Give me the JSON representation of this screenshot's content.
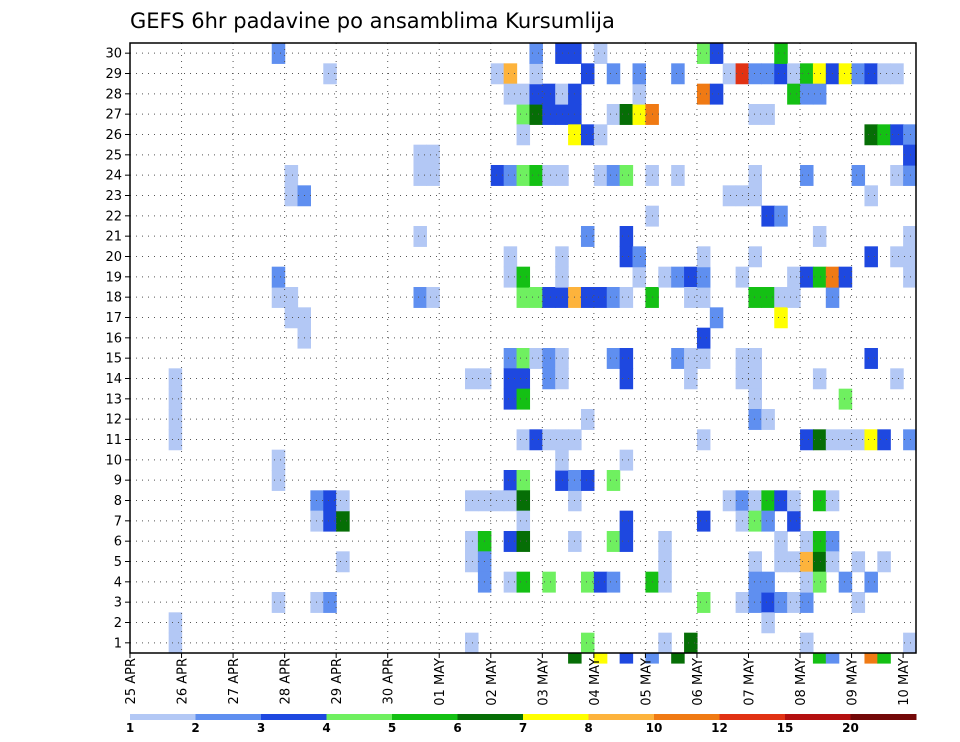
{
  "chart_data": {
    "type": "heatmap",
    "title": "GEFS 6hr padavine po ansamblima Kursumlija",
    "x_tick_labels": [
      "25 APR",
      "26 APR",
      "27 APR",
      "28 APR",
      "29 APR",
      "30 APR",
      "01 MAY",
      "02 MAY",
      "03 MAY",
      "04 MAY",
      "05 MAY",
      "06 MAY",
      "07 MAY",
      "08 MAY",
      "09 MAY",
      "10 MAY"
    ],
    "y_tick_labels": [
      "1",
      "2",
      "3",
      "4",
      "5",
      "6",
      "7",
      "8",
      "9",
      "10",
      "11",
      "12",
      "13",
      "14",
      "15",
      "16",
      "17",
      "18",
      "19",
      "20",
      "21",
      "22",
      "23",
      "24",
      "25",
      "26",
      "27",
      "28",
      "29",
      "30"
    ],
    "x_range": [
      0,
      61
    ],
    "y_range": [
      0.5,
      30.5
    ],
    "steps_per_day": 4,
    "grid": true,
    "colorbar": {
      "placement": "bottom",
      "labels": [
        "1",
        "2",
        "3",
        "4",
        "5",
        "6",
        "7",
        "8",
        "10",
        "12",
        "15",
        "20"
      ],
      "colors": [
        "#b3c8f5",
        "#5f8ff0",
        "#1e48e0",
        "#6ff060",
        "#14c014",
        "#066e06",
        "#ffff00",
        "#fdb33c",
        "#f07a14",
        "#e13214",
        "#b40f0f",
        "#730808"
      ]
    },
    "cells": [
      [
        3,
        1,
        1
      ],
      [
        3,
        2,
        1
      ],
      [
        3,
        11,
        1
      ],
      [
        3,
        12,
        1
      ],
      [
        3,
        13,
        1
      ],
      [
        3,
        14,
        1
      ],
      [
        11,
        3,
        1
      ],
      [
        11,
        9,
        1
      ],
      [
        11,
        10,
        1
      ],
      [
        11,
        18,
        1
      ],
      [
        11,
        19,
        2
      ],
      [
        11,
        30,
        2
      ],
      [
        12,
        17,
        1
      ],
      [
        12,
        18,
        1
      ],
      [
        12,
        23,
        1
      ],
      [
        12,
        24,
        1
      ],
      [
        13,
        16,
        1
      ],
      [
        13,
        17,
        1
      ],
      [
        13,
        23,
        2
      ],
      [
        14,
        3,
        1
      ],
      [
        14,
        8,
        2
      ],
      [
        14,
        7,
        1
      ],
      [
        15,
        3,
        2
      ],
      [
        15,
        7,
        3
      ],
      [
        15,
        8,
        3
      ],
      [
        15,
        29,
        1
      ],
      [
        16,
        7,
        6
      ],
      [
        16,
        8,
        1
      ],
      [
        16,
        5,
        1
      ],
      [
        22,
        24,
        1
      ],
      [
        22,
        25,
        1
      ],
      [
        22,
        18,
        2
      ],
      [
        22,
        21,
        1
      ],
      [
        23,
        24,
        1
      ],
      [
        23,
        25,
        1
      ],
      [
        23,
        18,
        1
      ],
      [
        26,
        1,
        1
      ],
      [
        26,
        5,
        1
      ],
      [
        26,
        6,
        1
      ],
      [
        26,
        8,
        1
      ],
      [
        26,
        14,
        1
      ],
      [
        27,
        6,
        5
      ],
      [
        27,
        5,
        2
      ],
      [
        27,
        4,
        2
      ],
      [
        27,
        8,
        1
      ],
      [
        27,
        14,
        1
      ],
      [
        28,
        8,
        1
      ],
      [
        28,
        24,
        3
      ],
      [
        28,
        29,
        1
      ],
      [
        29,
        29,
        8
      ],
      [
        29,
        24,
        2
      ],
      [
        29,
        20,
        1
      ],
      [
        29,
        19,
        1
      ],
      [
        29,
        15,
        2
      ],
      [
        29,
        14,
        3
      ],
      [
        29,
        13,
        3
      ],
      [
        29,
        9,
        3
      ],
      [
        29,
        6,
        3
      ],
      [
        29,
        4,
        1
      ],
      [
        29,
        8,
        1
      ],
      [
        29,
        28,
        1
      ],
      [
        30,
        27,
        4
      ],
      [
        30,
        18,
        4
      ],
      [
        30,
        24,
        4
      ],
      [
        30,
        15,
        4
      ],
      [
        30,
        14,
        3
      ],
      [
        30,
        13,
        5
      ],
      [
        30,
        11,
        1
      ],
      [
        30,
        9,
        4
      ],
      [
        30,
        8,
        6
      ],
      [
        30,
        7,
        1
      ],
      [
        30,
        6,
        6
      ],
      [
        30,
        4,
        5
      ],
      [
        30,
        19,
        5
      ],
      [
        30,
        26,
        1
      ],
      [
        30,
        28,
        1
      ],
      [
        31,
        27,
        6
      ],
      [
        31,
        28,
        3
      ],
      [
        31,
        29,
        1
      ],
      [
        31,
        30,
        2
      ],
      [
        31,
        18,
        4
      ],
      [
        31,
        24,
        5
      ],
      [
        31,
        11,
        3
      ],
      [
        31,
        15,
        1
      ],
      [
        32,
        27,
        3
      ],
      [
        32,
        28,
        3
      ],
      [
        32,
        24,
        1
      ],
      [
        32,
        18,
        3
      ],
      [
        32,
        11,
        1
      ],
      [
        32,
        15,
        2
      ],
      [
        32,
        14,
        2
      ],
      [
        32,
        4,
        4
      ],
      [
        33,
        27,
        3
      ],
      [
        33,
        28,
        1
      ],
      [
        33,
        30,
        3
      ],
      [
        33,
        24,
        1
      ],
      [
        33,
        18,
        3
      ],
      [
        33,
        11,
        1
      ],
      [
        33,
        15,
        1
      ],
      [
        33,
        19,
        1
      ],
      [
        33,
        20,
        1
      ],
      [
        33,
        9,
        3
      ],
      [
        33,
        10,
        1
      ],
      [
        33,
        14,
        1
      ],
      [
        34,
        27,
        3
      ],
      [
        34,
        28,
        3
      ],
      [
        34,
        30,
        3
      ],
      [
        34,
        26,
        7
      ],
      [
        34,
        18,
        8
      ],
      [
        34,
        6,
        1
      ],
      [
        34,
        8,
        1
      ],
      [
        34,
        9,
        2
      ],
      [
        34,
        11,
        1
      ],
      [
        34,
        0,
        6
      ],
      [
        35,
        29,
        3
      ],
      [
        35,
        26,
        3
      ],
      [
        35,
        21,
        2
      ],
      [
        35,
        18,
        3
      ],
      [
        35,
        9,
        3
      ],
      [
        35,
        4,
        4
      ],
      [
        35,
        12,
        1
      ],
      [
        35,
        1,
        4
      ],
      [
        36,
        26,
        1
      ],
      [
        36,
        30,
        1
      ],
      [
        36,
        24,
        1
      ],
      [
        36,
        18,
        3
      ],
      [
        36,
        4,
        3
      ],
      [
        36,
        0,
        7
      ],
      [
        37,
        29,
        2
      ],
      [
        37,
        27,
        1
      ],
      [
        37,
        24,
        2
      ],
      [
        37,
        18,
        2
      ],
      [
        37,
        15,
        2
      ],
      [
        37,
        6,
        4
      ],
      [
        37,
        9,
        4
      ],
      [
        37,
        4,
        2
      ],
      [
        38,
        27,
        6
      ],
      [
        38,
        24,
        4
      ],
      [
        38,
        18,
        1
      ],
      [
        38,
        15,
        3
      ],
      [
        38,
        14,
        3
      ],
      [
        38,
        7,
        3
      ],
      [
        38,
        6,
        3
      ],
      [
        38,
        10,
        1
      ],
      [
        38,
        20,
        3
      ],
      [
        38,
        21,
        3
      ],
      [
        38,
        0,
        3
      ],
      [
        39,
        27,
        7
      ],
      [
        39,
        28,
        1
      ],
      [
        39,
        29,
        2
      ],
      [
        39,
        19,
        1
      ],
      [
        39,
        20,
        2
      ],
      [
        40,
        27,
        9
      ],
      [
        40,
        24,
        1
      ],
      [
        40,
        18,
        5
      ],
      [
        40,
        22,
        1
      ],
      [
        40,
        4,
        5
      ],
      [
        40,
        0,
        2
      ],
      [
        41,
        1,
        1
      ],
      [
        41,
        4,
        1
      ],
      [
        41,
        5,
        1
      ],
      [
        41,
        6,
        1
      ],
      [
        41,
        19,
        1
      ],
      [
        42,
        24,
        1
      ],
      [
        42,
        29,
        2
      ],
      [
        42,
        15,
        2
      ],
      [
        42,
        19,
        2
      ],
      [
        42,
        0,
        6
      ],
      [
        43,
        19,
        3
      ],
      [
        43,
        18,
        1
      ],
      [
        43,
        1,
        6
      ],
      [
        43,
        15,
        1
      ],
      [
        43,
        14,
        1
      ],
      [
        44,
        30,
        4
      ],
      [
        44,
        18,
        1
      ],
      [
        44,
        19,
        2
      ],
      [
        44,
        20,
        1
      ],
      [
        44,
        15,
        1
      ],
      [
        44,
        28,
        9
      ],
      [
        44,
        16,
        3
      ],
      [
        44,
        7,
        3
      ],
      [
        44,
        11,
        1
      ],
      [
        44,
        3,
        4
      ],
      [
        45,
        30,
        3
      ],
      [
        45,
        28,
        3
      ],
      [
        45,
        17,
        2
      ],
      [
        46,
        29,
        1
      ],
      [
        46,
        23,
        1
      ],
      [
        46,
        8,
        1
      ],
      [
        47,
        23,
        1
      ],
      [
        47,
        19,
        1
      ],
      [
        47,
        15,
        1
      ],
      [
        47,
        14,
        1
      ],
      [
        47,
        8,
        2
      ],
      [
        47,
        7,
        1
      ],
      [
        47,
        3,
        1
      ],
      [
        47,
        29,
        10
      ],
      [
        48,
        24,
        1
      ],
      [
        48,
        23,
        1
      ],
      [
        48,
        27,
        1
      ],
      [
        48,
        20,
        1
      ],
      [
        48,
        18,
        5
      ],
      [
        48,
        15,
        1
      ],
      [
        48,
        14,
        1
      ],
      [
        48,
        13,
        1
      ],
      [
        48,
        12,
        2
      ],
      [
        48,
        8,
        1
      ],
      [
        48,
        7,
        4
      ],
      [
        48,
        5,
        1
      ],
      [
        48,
        4,
        2
      ],
      [
        48,
        3,
        2
      ],
      [
        48,
        29,
        2
      ],
      [
        49,
        29,
        2
      ],
      [
        49,
        27,
        1
      ],
      [
        49,
        22,
        3
      ],
      [
        49,
        18,
        5
      ],
      [
        49,
        12,
        1
      ],
      [
        49,
        8,
        5
      ],
      [
        49,
        7,
        2
      ],
      [
        49,
        3,
        3
      ],
      [
        49,
        2,
        1
      ],
      [
        49,
        4,
        2
      ],
      [
        50,
        29,
        3
      ],
      [
        50,
        30,
        5
      ],
      [
        50,
        22,
        2
      ],
      [
        50,
        18,
        1
      ],
      [
        50,
        6,
        1
      ],
      [
        50,
        8,
        3
      ],
      [
        50,
        3,
        2
      ],
      [
        50,
        5,
        1
      ],
      [
        50,
        17,
        7
      ],
      [
        51,
        29,
        1
      ],
      [
        51,
        28,
        5
      ],
      [
        51,
        18,
        1
      ],
      [
        51,
        19,
        1
      ],
      [
        51,
        7,
        3
      ],
      [
        51,
        5,
        1
      ],
      [
        51,
        8,
        1
      ],
      [
        51,
        3,
        1
      ],
      [
        52,
        29,
        5
      ],
      [
        52,
        28,
        2
      ],
      [
        52,
        24,
        2
      ],
      [
        52,
        19,
        3
      ],
      [
        52,
        11,
        3
      ],
      [
        52,
        5,
        8
      ],
      [
        52,
        6,
        1
      ],
      [
        52,
        1,
        1
      ],
      [
        52,
        3,
        2
      ],
      [
        52,
        4,
        1
      ],
      [
        53,
        29,
        7
      ],
      [
        53,
        28,
        2
      ],
      [
        53,
        19,
        5
      ],
      [
        53,
        21,
        1
      ],
      [
        53,
        11,
        6
      ],
      [
        53,
        14,
        1
      ],
      [
        53,
        5,
        6
      ],
      [
        53,
        6,
        5
      ],
      [
        53,
        8,
        5
      ],
      [
        53,
        4,
        4
      ],
      [
        53,
        0,
        5
      ],
      [
        54,
        29,
        3
      ],
      [
        54,
        18,
        2
      ],
      [
        54,
        19,
        9
      ],
      [
        54,
        11,
        1
      ],
      [
        54,
        8,
        1
      ],
      [
        54,
        6,
        2
      ],
      [
        54,
        5,
        1
      ],
      [
        54,
        0,
        2
      ],
      [
        55,
        29,
        7
      ],
      [
        55,
        19,
        3
      ],
      [
        55,
        13,
        4
      ],
      [
        55,
        11,
        1
      ],
      [
        55,
        4,
        2
      ],
      [
        56,
        29,
        2
      ],
      [
        56,
        24,
        2
      ],
      [
        56,
        11,
        1
      ],
      [
        56,
        5,
        1
      ],
      [
        56,
        3,
        1
      ],
      [
        57,
        29,
        3
      ],
      [
        57,
        26,
        6
      ],
      [
        57,
        20,
        3
      ],
      [
        57,
        15,
        3
      ],
      [
        57,
        11,
        7
      ],
      [
        57,
        23,
        1
      ],
      [
        57,
        4,
        2
      ],
      [
        57,
        0,
        9
      ],
      [
        58,
        29,
        1
      ],
      [
        58,
        26,
        5
      ],
      [
        58,
        11,
        3
      ],
      [
        58,
        5,
        1
      ],
      [
        58,
        0,
        5
      ],
      [
        59,
        26,
        3
      ],
      [
        59,
        29,
        1
      ],
      [
        59,
        24,
        1
      ],
      [
        59,
        20,
        1
      ],
      [
        59,
        14,
        1
      ],
      [
        60,
        25,
        1
      ],
      [
        60,
        24,
        2
      ],
      [
        60,
        21,
        1
      ],
      [
        60,
        20,
        1
      ],
      [
        60,
        26,
        2
      ],
      [
        60,
        25,
        3
      ],
      [
        60,
        11,
        2
      ],
      [
        60,
        1,
        1
      ],
      [
        60,
        19,
        1
      ]
    ]
  }
}
